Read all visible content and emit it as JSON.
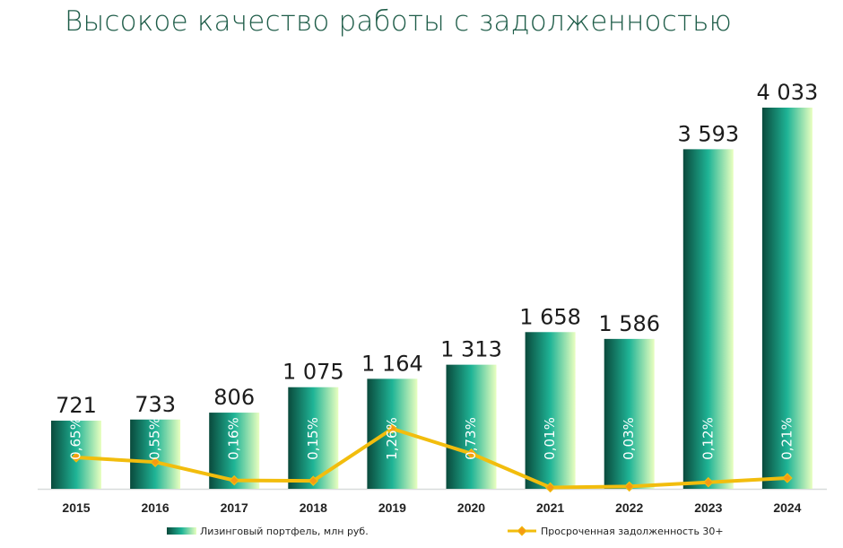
{
  "title": "Высокое качество работы с задолженностью",
  "colors": {
    "title": "#1f5d49",
    "bar_dark": "#0a4a3c",
    "bar_mid": "#1fb496",
    "bar_light": "#e9ffc0",
    "line": "#f2bd0d",
    "marker": "#f59a14",
    "baseline": "#d8dcdb"
  },
  "chart_data": {
    "type": "bar",
    "categories": [
      "2015",
      "2016",
      "2017",
      "2018",
      "2019",
      "2020",
      "2021",
      "2022",
      "2023",
      "2024"
    ],
    "series": [
      {
        "name": "Лизинговый портфель, млн руб.",
        "type": "bar",
        "values": [
          721,
          733,
          806,
          1075,
          1164,
          1313,
          1658,
          1586,
          3593,
          4033
        ],
        "labels": [
          "721",
          "733",
          "806",
          "1 075",
          "1 164",
          "1 313",
          "1 658",
          "1 586",
          "3 593",
          "4 033"
        ]
      },
      {
        "name": "Просроченная задолженность 30+",
        "type": "line",
        "values": [
          0.65,
          0.55,
          0.16,
          0.15,
          1.26,
          0.73,
          0.01,
          0.03,
          0.12,
          0.21
        ],
        "labels": [
          "0,65%",
          "0,55%",
          "0,16%",
          "0,15%",
          "1,26%",
          "0,73%",
          "0,01%",
          "0,03%",
          "0,12%",
          "0,21%"
        ]
      }
    ],
    "legend_position": "bottom",
    "grid": false
  }
}
